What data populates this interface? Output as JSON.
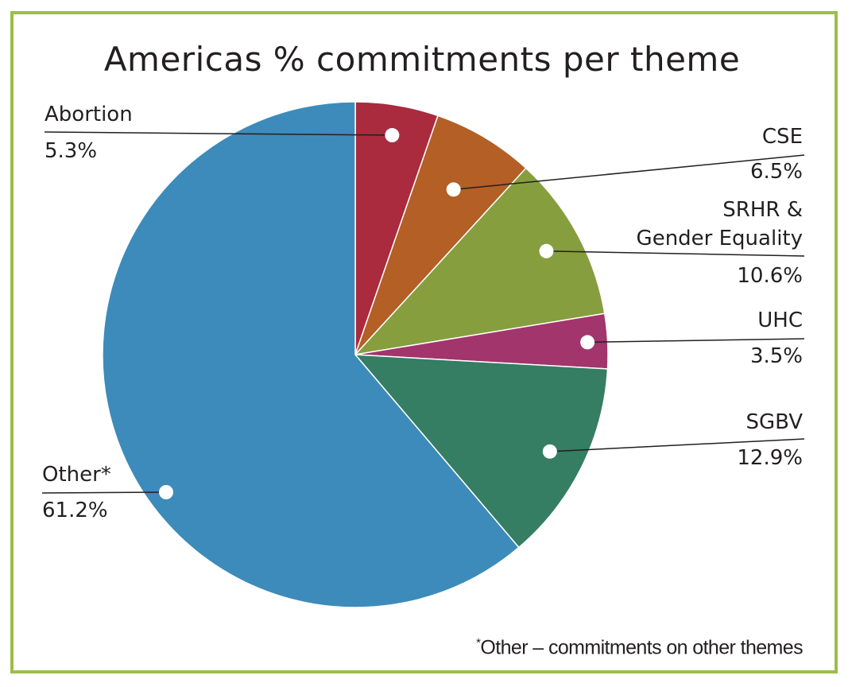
{
  "chart_data": {
    "type": "pie",
    "title": "Americas % commitments per theme",
    "slices": [
      {
        "label": "Abortion",
        "line2": "",
        "value": 5.3,
        "display": "5.3%",
        "color": "#aa2a3e"
      },
      {
        "label": "CSE",
        "line2": "",
        "value": 6.5,
        "display": "6.5%",
        "color": "#b35f25"
      },
      {
        "label": "SRHR &",
        "line2": "Gender Equality",
        "value": 10.6,
        "display": "10.6%",
        "color": "#869e3e"
      },
      {
        "label": "UHC",
        "line2": "",
        "value": 3.5,
        "display": "3.5%",
        "color": "#a1356c"
      },
      {
        "label": "SGBV",
        "line2": "",
        "value": 12.9,
        "display": "12.9%",
        "color": "#357d63"
      },
      {
        "label": "Other*",
        "line2": "",
        "value": 61.2,
        "display": "61.2%",
        "color": "#3d8bba"
      }
    ],
    "footnote_mark": "*",
    "footnote": "Other – commitments on other themes"
  }
}
